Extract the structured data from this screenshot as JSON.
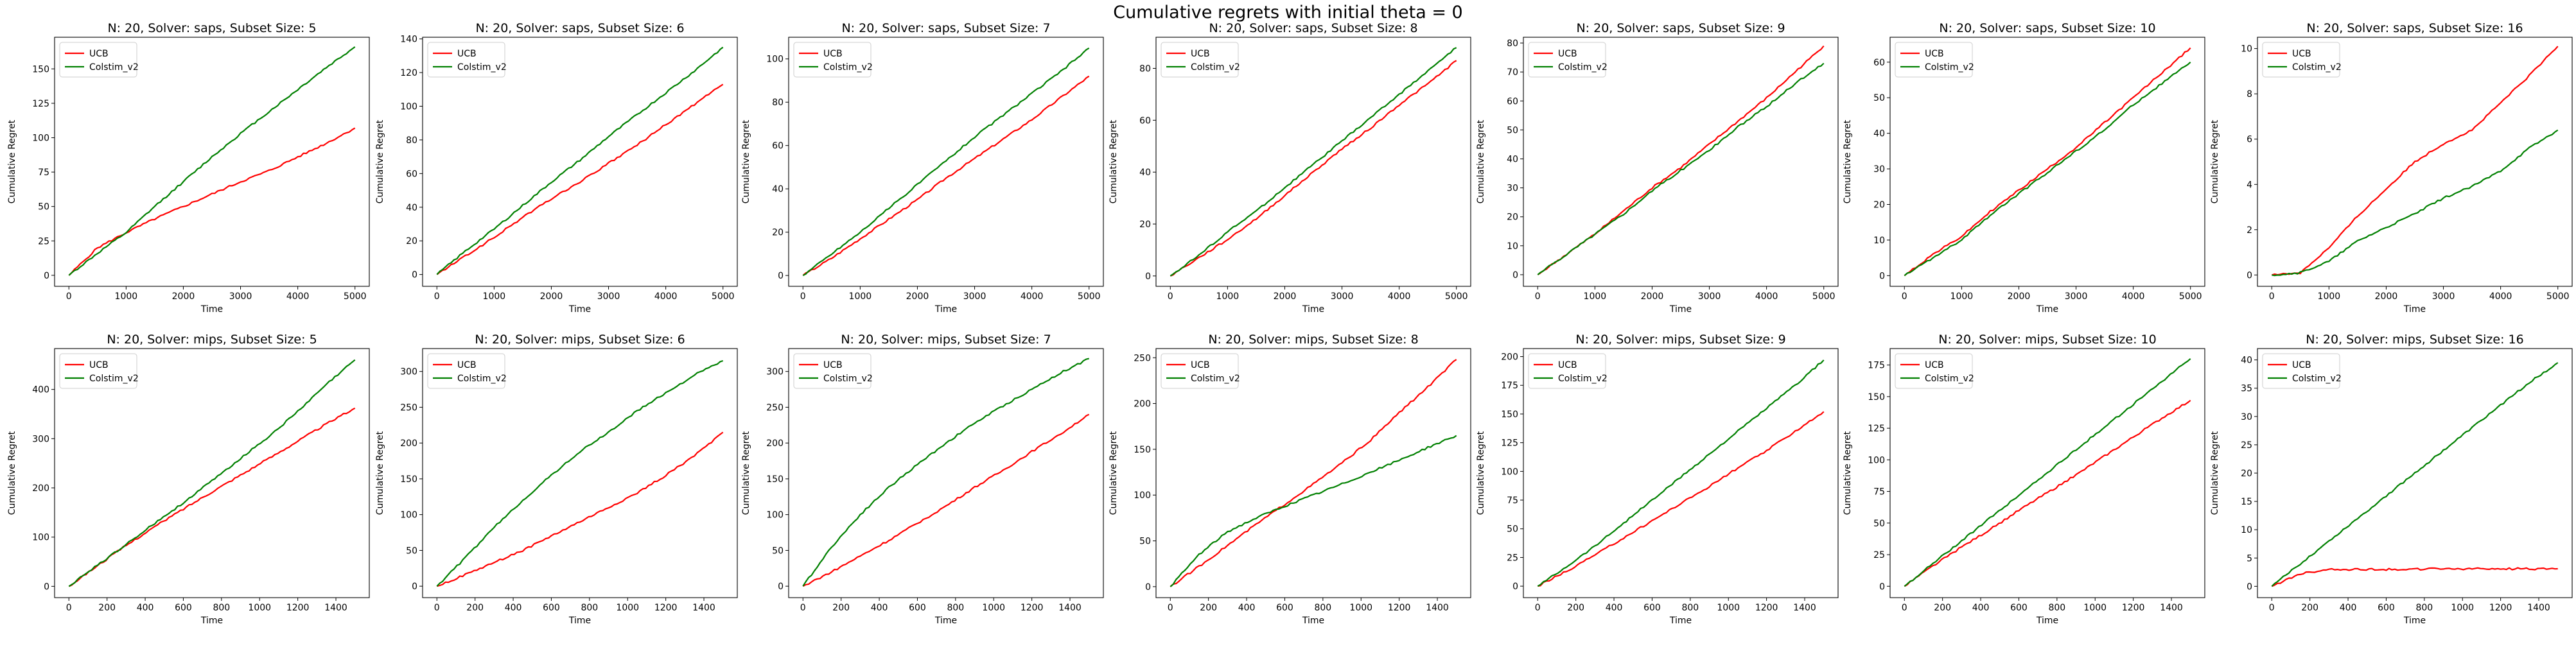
{
  "suptitle": "Cumulative regrets with initial theta = 0",
  "colors": {
    "UCB": "#ff0000",
    "Colstim_v2": "#008000"
  },
  "chart_data": [
    {
      "type": "line",
      "title": "N: 20, Solver: saps, Subset Size: 5",
      "xlabel": "Time",
      "ylabel": "Cumulative Regret",
      "xlim": [
        -250,
        5250
      ],
      "ylim": [
        -8,
        173
      ],
      "xticks": [
        0,
        1000,
        2000,
        3000,
        4000,
        5000
      ],
      "yticks": [
        0,
        25,
        50,
        75,
        100,
        125,
        150
      ],
      "legend": "top-left",
      "x": [
        0,
        500,
        1000,
        1500,
        2000,
        2500,
        3000,
        3500,
        4000,
        4500,
        5000
      ],
      "series": [
        {
          "name": "UCB",
          "values": [
            0,
            20,
            31,
            41,
            50,
            59,
            68,
            76,
            86,
            96,
            107
          ]
        },
        {
          "name": "Colstim_v2",
          "values": [
            0,
            16,
            31,
            50,
            68,
            86,
            103,
            119,
            135,
            151,
            166
          ]
        }
      ]
    },
    {
      "type": "line",
      "title": "N: 20, Solver: saps, Subset Size: 6",
      "xlabel": "Time",
      "ylabel": "Cumulative Regret",
      "xlim": [
        -250,
        5250
      ],
      "ylim": [
        -7,
        141
      ],
      "xticks": [
        0,
        1000,
        2000,
        3000,
        4000,
        5000
      ],
      "yticks": [
        0,
        20,
        40,
        60,
        80,
        100,
        120,
        140
      ],
      "legend": "top-left",
      "x": [
        0,
        500,
        1000,
        1500,
        2000,
        2500,
        3000,
        3500,
        4000,
        4500,
        5000
      ],
      "series": [
        {
          "name": "UCB",
          "values": [
            0,
            11,
            22,
            34,
            45,
            55,
            66,
            77,
            89,
            101,
            113
          ]
        },
        {
          "name": "Colstim_v2",
          "values": [
            0,
            14,
            27,
            41,
            55,
            68,
            82,
            95,
            108,
            121,
            135
          ]
        }
      ]
    },
    {
      "type": "line",
      "title": "N: 20, Solver: saps, Subset Size: 7",
      "xlabel": "Time",
      "ylabel": "Cumulative Regret",
      "xlim": [
        -250,
        5250
      ],
      "ylim": [
        -5,
        110
      ],
      "xticks": [
        0,
        1000,
        2000,
        3000,
        4000,
        5000
      ],
      "yticks": [
        0,
        20,
        40,
        60,
        80,
        100
      ],
      "legend": "top-left",
      "x": [
        0,
        500,
        1000,
        1500,
        2000,
        2500,
        3000,
        3500,
        4000,
        4500,
        5000
      ],
      "series": [
        {
          "name": "UCB",
          "values": [
            0,
            8,
            17,
            26,
            35,
            45,
            54,
            63,
            72,
            82,
            92
          ]
        },
        {
          "name": "Colstim_v2",
          "values": [
            0,
            10,
            20,
            31,
            42,
            53,
            64,
            74,
            84,
            94,
            105
          ]
        }
      ]
    },
    {
      "type": "line",
      "title": "N: 20, Solver: saps, Subset Size: 8",
      "xlabel": "Time",
      "ylabel": "Cumulative Regret",
      "xlim": [
        -250,
        5250
      ],
      "ylim": [
        -4,
        92
      ],
      "xticks": [
        0,
        1000,
        2000,
        3000,
        4000,
        5000
      ],
      "yticks": [
        0,
        20,
        40,
        60,
        80
      ],
      "legend": "top-left",
      "x": [
        0,
        500,
        1000,
        1500,
        2000,
        2500,
        3000,
        3500,
        4000,
        4500,
        5000
      ],
      "series": [
        {
          "name": "UCB",
          "values": [
            0,
            7,
            14,
            22,
            31,
            40,
            49,
            57,
            66,
            74,
            83
          ]
        },
        {
          "name": "Colstim_v2",
          "values": [
            0,
            8,
            17,
            25,
            34,
            43,
            52,
            61,
            70,
            79,
            88
          ]
        }
      ]
    },
    {
      "type": "line",
      "title": "N: 20, Solver: saps, Subset Size: 9",
      "xlabel": "Time",
      "ylabel": "Cumulative Regret",
      "xlim": [
        -250,
        5250
      ],
      "ylim": [
        -4,
        82
      ],
      "xticks": [
        0,
        1000,
        2000,
        3000,
        4000,
        5000
      ],
      "yticks": [
        0,
        10,
        20,
        30,
        40,
        50,
        60,
        70,
        80
      ],
      "legend": "top-left",
      "x": [
        0,
        500,
        1000,
        1500,
        2000,
        2500,
        3000,
        3500,
        4000,
        4500,
        5000
      ],
      "series": [
        {
          "name": "UCB",
          "values": [
            0,
            7,
            14,
            22,
            30,
            37,
            45,
            53,
            61,
            70,
            79
          ]
        },
        {
          "name": "Colstim_v2",
          "values": [
            0,
            7,
            14,
            21,
            29,
            36,
            43,
            51,
            58,
            66,
            73
          ]
        }
      ]
    },
    {
      "type": "line",
      "title": "N: 20, Solver: saps, Subset Size: 10",
      "xlabel": "Time",
      "ylabel": "Cumulative Regret",
      "xlim": [
        -250,
        5250
      ],
      "ylim": [
        -3,
        67
      ],
      "xticks": [
        0,
        1000,
        2000,
        3000,
        4000,
        5000
      ],
      "yticks": [
        0,
        10,
        20,
        30,
        40,
        50,
        60
      ],
      "legend": "top-left",
      "x": [
        0,
        500,
        1000,
        1500,
        2000,
        2500,
        3000,
        3500,
        4000,
        4500,
        5000
      ],
      "series": [
        {
          "name": "UCB",
          "values": [
            0,
            6,
            11,
            18,
            24,
            30,
            36,
            43,
            50,
            57,
            64
          ]
        },
        {
          "name": "Colstim_v2",
          "values": [
            0,
            5,
            10,
            17,
            23,
            29,
            35,
            41,
            48,
            54,
            60
          ]
        }
      ]
    },
    {
      "type": "line",
      "title": "N: 20, Solver: saps, Subset Size: 16",
      "xlabel": "Time",
      "ylabel": "Cumulative Regret",
      "xlim": [
        -250,
        5250
      ],
      "ylim": [
        -0.5,
        10.5
      ],
      "xticks": [
        0,
        1000,
        2000,
        3000,
        4000,
        5000
      ],
      "yticks": [
        0,
        2,
        4,
        6,
        8,
        10
      ],
      "legend": "top-left",
      "x": [
        0,
        500,
        1000,
        1500,
        2000,
        2500,
        3000,
        3500,
        4000,
        4500,
        5000
      ],
      "series": [
        {
          "name": "UCB",
          "values": [
            0,
            0.1,
            1.2,
            2.6,
            3.8,
            5.0,
            5.8,
            6.4,
            7.6,
            8.8,
            10.1
          ]
        },
        {
          "name": "Colstim_v2",
          "values": [
            0,
            0.1,
            0.6,
            1.5,
            2.1,
            2.7,
            3.4,
            3.9,
            4.6,
            5.6,
            6.4
          ]
        }
      ]
    },
    {
      "type": "line",
      "title": "N: 20, Solver: mips, Subset Size: 5",
      "xlabel": "Time",
      "ylabel": "Cumulative Regret",
      "xlim": [
        -75,
        1575
      ],
      "ylim": [
        -23,
        483
      ],
      "xticks": [
        0,
        200,
        400,
        600,
        800,
        1000,
        1200,
        1400
      ],
      "yticks": [
        0,
        100,
        200,
        300,
        400
      ],
      "legend": "top-left",
      "x": [
        0,
        150,
        300,
        450,
        600,
        750,
        900,
        1050,
        1200,
        1350,
        1500
      ],
      "series": [
        {
          "name": "UCB",
          "values": [
            0,
            42,
            83,
            121,
            157,
            192,
            226,
            260,
            295,
            330,
            362
          ]
        },
        {
          "name": "Colstim_v2",
          "values": [
            0,
            43,
            85,
            128,
            170,
            214,
            260,
            305,
            355,
            410,
            460
          ]
        }
      ]
    },
    {
      "type": "line",
      "title": "N: 20, Solver: mips, Subset Size: 6",
      "xlabel": "Time",
      "ylabel": "Cumulative Regret",
      "xlim": [
        -75,
        1575
      ],
      "ylim": [
        -16,
        332
      ],
      "xticks": [
        0,
        200,
        400,
        600,
        800,
        1000,
        1200,
        1400
      ],
      "yticks": [
        0,
        50,
        100,
        150,
        200,
        250,
        300
      ],
      "legend": "top-left",
      "x": [
        0,
        150,
        300,
        450,
        600,
        750,
        900,
        1050,
        1200,
        1350,
        1500
      ],
      "series": [
        {
          "name": "UCB",
          "values": [
            0,
            16,
            33,
            50,
            70,
            90,
            110,
            130,
            155,
            182,
            215
          ]
        },
        {
          "name": "Colstim_v2",
          "values": [
            0,
            40,
            82,
            120,
            155,
            188,
            215,
            245,
            270,
            295,
            315
          ]
        }
      ]
    },
    {
      "type": "line",
      "title": "N: 20, Solver: mips, Subset Size: 7",
      "xlabel": "Time",
      "ylabel": "Cumulative Regret",
      "xlim": [
        -75,
        1575
      ],
      "ylim": [
        -16,
        332
      ],
      "xticks": [
        0,
        200,
        400,
        600,
        800,
        1000,
        1200,
        1400
      ],
      "yticks": [
        0,
        50,
        100,
        150,
        200,
        250,
        300
      ],
      "legend": "top-left",
      "x": [
        0,
        150,
        300,
        450,
        600,
        750,
        900,
        1050,
        1200,
        1350,
        1500
      ],
      "series": [
        {
          "name": "UCB",
          "values": [
            0,
            20,
            42,
            64,
            88,
            112,
            138,
            162,
            188,
            213,
            240
          ]
        },
        {
          "name": "Colstim_v2",
          "values": [
            0,
            55,
            100,
            138,
            170,
            200,
            228,
            252,
            275,
            298,
            318
          ]
        }
      ]
    },
    {
      "type": "line",
      "title": "N: 20, Solver: mips, Subset Size: 8",
      "xlabel": "Time",
      "ylabel": "Cumulative Regret",
      "xlim": [
        -75,
        1575
      ],
      "ylim": [
        -12,
        260
      ],
      "xticks": [
        0,
        200,
        400,
        600,
        800,
        1000,
        1200,
        1400
      ],
      "yticks": [
        0,
        50,
        100,
        150,
        200,
        250
      ],
      "legend": "top-left",
      "x": [
        0,
        150,
        300,
        450,
        600,
        750,
        900,
        1050,
        1200,
        1350,
        1500
      ],
      "series": [
        {
          "name": "UCB",
          "values": [
            0,
            22,
            45,
            68,
            90,
            112,
            135,
            160,
            190,
            218,
            248
          ]
        },
        {
          "name": "Colstim_v2",
          "values": [
            0,
            35,
            60,
            75,
            88,
            100,
            112,
            125,
            138,
            152,
            165
          ]
        }
      ]
    },
    {
      "type": "line",
      "title": "N: 20, Solver: mips, Subset Size: 9",
      "xlabel": "Time",
      "ylabel": "Cumulative Regret",
      "xlim": [
        -75,
        1575
      ],
      "ylim": [
        -10,
        207
      ],
      "xticks": [
        0,
        200,
        400,
        600,
        800,
        1000,
        1200,
        1400
      ],
      "yticks": [
        0,
        25,
        50,
        75,
        100,
        125,
        150,
        175,
        200
      ],
      "legend": "top-left",
      "x": [
        0,
        150,
        300,
        450,
        600,
        750,
        900,
        1050,
        1200,
        1350,
        1500
      ],
      "series": [
        {
          "name": "UCB",
          "values": [
            0,
            13,
            27,
            42,
            57,
            72,
            87,
            103,
            118,
            135,
            152
          ]
        },
        {
          "name": "Colstim_v2",
          "values": [
            0,
            17,
            35,
            55,
            75,
            95,
            115,
            135,
            155,
            175,
            197
          ]
        }
      ]
    },
    {
      "type": "line",
      "title": "N: 20, Solver: mips, Subset Size: 10",
      "xlabel": "Time",
      "ylabel": "Cumulative Regret",
      "xlim": [
        -75,
        1575
      ],
      "ylim": [
        -9,
        188
      ],
      "xticks": [
        0,
        200,
        400,
        600,
        800,
        1000,
        1200,
        1400
      ],
      "yticks": [
        0,
        25,
        50,
        75,
        100,
        125,
        150,
        175
      ],
      "legend": "top-left",
      "x": [
        0,
        150,
        300,
        450,
        600,
        750,
        900,
        1050,
        1200,
        1350,
        1500
      ],
      "series": [
        {
          "name": "UCB",
          "values": [
            0,
            16,
            31,
            45,
            60,
            74,
            88,
            103,
            118,
            133,
            147
          ]
        },
        {
          "name": "Colstim_v2",
          "values": [
            0,
            18,
            36,
            54,
            72,
            90,
            108,
            126,
            144,
            162,
            180
          ]
        }
      ]
    },
    {
      "type": "line",
      "title": "N: 20, Solver: mips, Subset Size: 16",
      "xlabel": "Time",
      "ylabel": "Cumulative Regret",
      "xlim": [
        -75,
        1575
      ],
      "ylim": [
        -2,
        42
      ],
      "xticks": [
        0,
        200,
        400,
        600,
        800,
        1000,
        1200,
        1400
      ],
      "yticks": [
        0,
        5,
        10,
        15,
        20,
        25,
        30,
        35,
        40
      ],
      "legend": "top-left",
      "x": [
        0,
        150,
        300,
        450,
        600,
        750,
        900,
        1050,
        1200,
        1350,
        1500
      ],
      "series": [
        {
          "name": "UCB",
          "values": [
            0,
            2.2,
            3.0,
            3.0,
            3.0,
            3.0,
            3.1,
            3.1,
            3.1,
            3.1,
            3.1
          ]
        },
        {
          "name": "Colstim_v2",
          "values": [
            0,
            4,
            8,
            12,
            16,
            20,
            24,
            28,
            32,
            36,
            39.5
          ]
        }
      ]
    }
  ]
}
